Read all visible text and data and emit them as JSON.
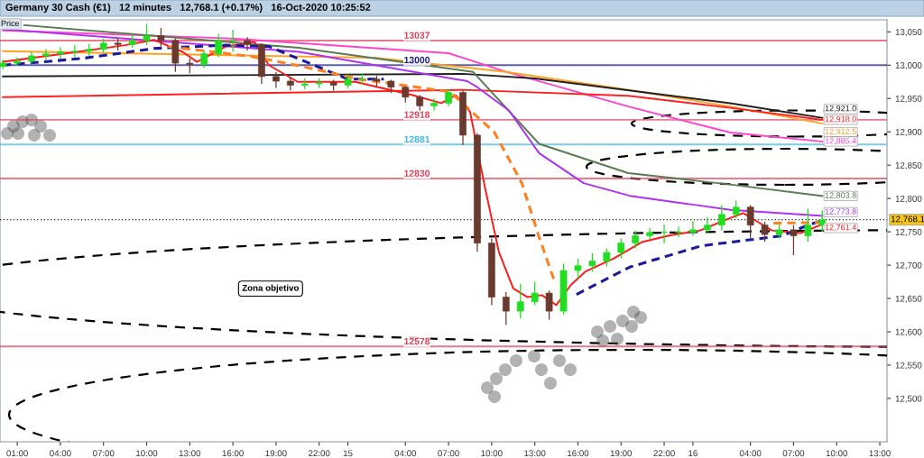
{
  "chart_data": {
    "type": "candlestick",
    "title": "Germany 30 Cash (€1)   12 minutes   12,768.1 (+0.17%)   16-Oct-2020 10:25:52",
    "x": [
      "2020-10-14T00:00",
      "2020-10-14T01:00",
      "2020-10-14T02:00",
      "2020-10-14T03:00",
      "2020-10-14T04:00",
      "2020-10-14T05:00",
      "2020-10-14T06:00",
      "2020-10-14T07:00",
      "2020-10-14T08:00",
      "2020-10-14T09:00",
      "2020-10-14T10:00",
      "2020-10-14T11:00",
      "2020-10-14T12:00",
      "2020-10-14T13:00",
      "2020-10-14T14:00",
      "2020-10-14T15:00",
      "2020-10-14T16:00",
      "2020-10-14T17:00",
      "2020-10-14T18:00",
      "2020-10-14T19:00",
      "2020-10-14T20:00",
      "2020-10-14T21:00",
      "2020-10-14T22:00",
      "2020-10-14T23:00",
      "2020-10-15T00:00",
      "2020-10-15T01:00",
      "2020-10-15T02:00",
      "2020-10-15T03:00",
      "2020-10-15T04:00",
      "2020-10-15T05:00",
      "2020-10-15T06:00",
      "2020-10-15T07:00",
      "2020-10-15T08:00",
      "2020-10-15T09:00",
      "2020-10-15T10:00",
      "2020-10-15T11:00",
      "2020-10-15T12:00",
      "2020-10-15T13:00",
      "2020-10-15T14:00",
      "2020-10-15T15:00",
      "2020-10-15T16:00",
      "2020-10-15T17:00",
      "2020-10-15T18:00",
      "2020-10-15T19:00",
      "2020-10-15T20:00",
      "2020-10-15T21:00",
      "2020-10-15T22:00",
      "2020-10-15T23:00",
      "2020-10-16T00:00",
      "2020-10-16T01:00",
      "2020-10-16T02:00",
      "2020-10-16T03:00",
      "2020-10-16T04:00",
      "2020-10-16T05:00",
      "2020-10-16T06:00",
      "2020-10-16T07:00",
      "2020-10-16T08:00",
      "2020-10-16T09:00"
    ],
    "ohlc": [
      [
        12998,
        13008,
        12994,
        13003
      ],
      [
        13003,
        13012,
        12999,
        13006
      ],
      [
        13006,
        13020,
        13002,
        13014
      ],
      [
        13014,
        13024,
        13008,
        13017
      ],
      [
        13017,
        13027,
        13010,
        13020
      ],
      [
        13020,
        13030,
        13012,
        13021
      ],
      [
        13021,
        13032,
        13014,
        13024
      ],
      [
        13024,
        13040,
        13018,
        13033
      ],
      [
        13033,
        13040,
        13022,
        13031
      ],
      [
        13031,
        13046,
        13026,
        13037
      ],
      [
        13037,
        13062,
        13030,
        13044
      ],
      [
        13044,
        13056,
        13028,
        13037
      ],
      [
        13037,
        13040,
        12990,
        13003
      ],
      [
        13003,
        13010,
        12988,
        13001
      ],
      [
        13001,
        13022,
        12996,
        13017
      ],
      [
        13017,
        13047,
        13012,
        13037
      ],
      [
        13037,
        13053,
        13020,
        13037
      ],
      [
        13037,
        13042,
        13022,
        13031
      ],
      [
        13031,
        13033,
        12972,
        12983
      ],
      [
        12983,
        12990,
        12966,
        12976
      ],
      [
        12976,
        12982,
        12962,
        12970
      ],
      [
        12970,
        12980,
        12964,
        12972
      ],
      [
        12972,
        12980,
        12966,
        12974
      ],
      [
        12974,
        12978,
        12962,
        12970
      ],
      [
        12970,
        12986,
        12965,
        12979
      ],
      [
        12979,
        12988,
        12972,
        12979
      ],
      [
        12979,
        12984,
        12968,
        12976
      ],
      [
        12976,
        12978,
        12958,
        12967
      ],
      [
        12967,
        12968,
        12944,
        12952
      ],
      [
        12952,
        12955,
        12930,
        12939
      ],
      [
        12939,
        12950,
        12932,
        12943
      ],
      [
        12943,
        12964,
        12938,
        12959
      ],
      [
        12959,
        12962,
        12880,
        12895
      ],
      [
        12895,
        12898,
        12720,
        12733
      ],
      [
        12733,
        12740,
        12640,
        12652
      ],
      [
        12652,
        12660,
        12610,
        12631
      ],
      [
        12631,
        12672,
        12620,
        12645
      ],
      [
        12645,
        12675,
        12640,
        12658
      ],
      [
        12658,
        12662,
        12618,
        12631
      ],
      [
        12631,
        12702,
        12626,
        12692
      ],
      [
        12692,
        12710,
        12680,
        12699
      ],
      [
        12699,
        12718,
        12690,
        12706
      ],
      [
        12706,
        12725,
        12698,
        12719
      ],
      [
        12719,
        12740,
        12710,
        12733
      ],
      [
        12733,
        12752,
        12725,
        12744
      ],
      [
        12744,
        12756,
        12738,
        12749
      ],
      [
        12749,
        12761,
        12733,
        12749
      ],
      [
        12749,
        12758,
        12742,
        12749
      ],
      [
        12749,
        12766,
        12744,
        12753
      ],
      [
        12753,
        12772,
        12748,
        12760
      ],
      [
        12760,
        12790,
        12752,
        12776
      ],
      [
        12776,
        12797,
        12770,
        12787
      ],
      [
        12787,
        12790,
        12740,
        12760
      ],
      [
        12760,
        12765,
        12735,
        12746
      ],
      [
        12746,
        12762,
        12740,
        12753
      ],
      [
        12753,
        12760,
        12715,
        12744
      ],
      [
        12744,
        12785,
        12735,
        12760
      ],
      [
        12760,
        12782,
        12750,
        12768.1
      ]
    ],
    "colors": [
      "#22dd22",
      "#22dd22",
      "#22dd22",
      "#22dd22",
      "#22dd22",
      "#22dd22",
      "#22dd22",
      "#22dd22",
      "#6b3a2e",
      "#22dd22",
      "#22dd22",
      "#6b3a2e",
      "#6b3a2e",
      "#6b3a2e",
      "#22dd22",
      "#22dd22",
      "#22dd22",
      "#6b3a2e",
      "#6b3a2e",
      "#6b3a2e",
      "#6b3a2e",
      "#22dd22",
      "#22dd22",
      "#6b3a2e",
      "#22dd22",
      "#22dd22",
      "#6b3a2e",
      "#6b3a2e",
      "#6b3a2e",
      "#6b3a2e",
      "#22dd22",
      "#22dd22",
      "#6b3a2e",
      "#6b3a2e",
      "#6b3a2e",
      "#6b3a2e",
      "#22dd22",
      "#22dd22",
      "#6b3a2e",
      "#22dd22",
      "#22dd22",
      "#22dd22",
      "#22dd22",
      "#22dd22",
      "#22dd22",
      "#22dd22",
      "#22dd22",
      "#22dd22",
      "#22dd22",
      "#22dd22",
      "#22dd22",
      "#22dd22",
      "#6b3a2e",
      "#6b3a2e",
      "#22dd22",
      "#6b3a2e",
      "#22dd22",
      "#22dd22"
    ],
    "series": [
      {
        "type": "line",
        "color": "#ff44cc",
        "x": [
          "2020-10-14T00:00",
          "2020-10-14T16:00",
          "2020-10-15T07:00",
          "2020-10-15T11:00",
          "2020-10-15T19:30",
          "2020-10-16T02:36",
          "2020-10-16T09:00"
        ],
        "values": [
          13052,
          13040,
          13018,
          12990,
          12938,
          12899,
          12885.4
        ],
        "value_labels": [
          null,
          null,
          null,
          null,
          null,
          null,
          "12,885.4"
        ]
      },
      {
        "type": "line",
        "color": "#ffa020",
        "x": [
          "2020-10-14T00:00",
          "2020-10-15T02:00",
          "2020-10-15T11:00",
          "2020-10-15T19:30",
          "2020-10-16T02:36",
          "2020-10-16T09:00"
        ],
        "values": [
          13021,
          13011,
          12990,
          12963,
          12938,
          12912.5
        ],
        "value_labels": [
          null,
          null,
          null,
          null,
          null,
          "12,912.5"
        ]
      },
      {
        "type": "line",
        "color": "#202020",
        "x": [
          "2020-10-14T00:00",
          "2020-10-15T08:00",
          "2020-10-15T13:00",
          "2020-10-16T02:36",
          "2020-10-16T09:00"
        ],
        "values": [
          12983,
          12987,
          12980,
          12943,
          12921.0
        ],
        "value_labels": [
          null,
          null,
          null,
          null,
          "12,921.0"
        ]
      },
      {
        "type": "line",
        "color": "#ff2020",
        "x": [
          "2020-10-14T00:00",
          "2020-10-15T08:00",
          "2020-10-15T19:30",
          "2020-10-16T02:36",
          "2020-10-16T09:00"
        ],
        "values": [
          12952,
          12963,
          12954,
          12936,
          12918.0
        ],
        "value_labels": [
          null,
          null,
          null,
          null,
          "12,918.0"
        ]
      },
      {
        "type": "line",
        "color": "#5a7a50",
        "x": [
          "2020-10-14T01:30",
          "2020-10-14T20:36",
          "2020-10-15T08:42",
          "2020-10-15T13:18",
          "2020-10-15T19:30",
          "2020-10-16T02:36",
          "2020-10-16T09:00"
        ],
        "values": [
          13060,
          13026,
          12990,
          12882,
          12838,
          12821,
          12803.8
        ],
        "value_labels": [
          null,
          null,
          null,
          null,
          null,
          null,
          "12,803.8"
        ]
      },
      {
        "type": "line",
        "color": "#b030f0",
        "x": [
          "2020-10-14T00:00",
          "2020-10-14T20:36",
          "2020-10-15T08:18",
          "2020-10-15T09:00",
          "2020-10-15T11:12",
          "2020-10-15T13:18",
          "2020-10-15T16:24",
          "2020-10-15T19:36",
          "2020-10-16T02:36",
          "2020-10-16T09:00"
        ],
        "values": [
          13054,
          13020,
          12976,
          12967,
          12932,
          12868,
          12823,
          12804,
          12783,
          12773.8
        ],
        "value_labels": [
          null,
          null,
          null,
          null,
          null,
          null,
          null,
          null,
          null,
          "12,773.8"
        ]
      },
      {
        "type": "line",
        "color": "#ff1a1a",
        "x": [
          "2020-10-14T00:00",
          "2020-10-14T04:30",
          "2020-10-14T08:30",
          "2020-10-14T10:30",
          "2020-10-14T12:30",
          "2020-10-14T13:30",
          "2020-10-14T15:30",
          "2020-10-14T17:30",
          "2020-10-14T18:30",
          "2020-10-14T20:30",
          "2020-10-15T00:30",
          "2020-10-15T04:30",
          "2020-10-15T06:30",
          "2020-10-15T07:30",
          "2020-10-15T08:30",
          "2020-10-15T09:30",
          "2020-10-15T10:30",
          "2020-10-15T11:30",
          "2020-10-15T12:30",
          "2020-10-15T13:30",
          "2020-10-15T14:30",
          "2020-10-15T15:30",
          "2020-10-15T16:30",
          "2020-10-15T18:30",
          "2020-10-15T20:30",
          "2020-10-15T22:30",
          "2020-10-16T00:30",
          "2020-10-16T02:30",
          "2020-10-16T03:30",
          "2020-10-16T04:30",
          "2020-10-16T05:30",
          "2020-10-16T07:30",
          "2020-10-16T09:00"
        ],
        "values": [
          13005,
          13018,
          13030,
          13038,
          13020,
          13005,
          13028,
          13035,
          13000,
          12975,
          12975,
          12955,
          12943,
          12955,
          12930,
          12820,
          12720,
          12665,
          12652,
          12655,
          12640,
          12670,
          12690,
          12710,
          12735,
          12745,
          12752,
          12770,
          12778,
          12765,
          12752,
          12748,
          12761.4
        ],
        "value_labels": [
          null,
          null,
          null,
          null,
          null,
          null,
          null,
          null,
          null,
          null,
          null,
          null,
          null,
          null,
          null,
          null,
          null,
          null,
          null,
          null,
          null,
          null,
          null,
          null,
          null,
          null,
          null,
          null,
          null,
          null,
          null,
          null,
          "12,761.4"
        ]
      },
      {
        "type": "line",
        "color": "#1a1a9a",
        "line_style": "dashed",
        "x": [
          "2020-10-14T00:00",
          "2020-10-14T05:30",
          "2020-10-14T10:30",
          "2020-10-14T15:30",
          "2020-10-14T18:30",
          "2020-10-15T00:00",
          "2020-10-15T02:30",
          "2020-10-15T09:00",
          "2020-10-15T15:54",
          "2020-10-15T19:36",
          "2020-10-16T00:36",
          "2020-10-16T06:12",
          "2020-10-16T08:00",
          "2020-10-16T09:00"
        ],
        "values": [
          13000,
          13010,
          13025,
          13030,
          13028,
          12979,
          12979,
          null,
          12656,
          12697,
          12729,
          12744,
          12760,
          12767
        ]
      },
      {
        "type": "line",
        "color": "#ff8020",
        "line_style": "dashed",
        "x": [
          "2020-10-14T11:30",
          "2020-10-14T17:18",
          "2020-10-14T20:24",
          "2020-10-15T00:48",
          "2020-10-15T07:06",
          "2020-10-15T10:12",
          "2020-10-15T12:06",
          "2020-10-15T13:18",
          "2020-10-15T14:24",
          "2020-10-15T21:00",
          "2020-10-16T05:36",
          "2020-10-16T09:00"
        ],
        "values": [
          13028,
          13013,
          13000,
          12979,
          12960,
          12899,
          12823,
          12742,
          12674,
          null,
          12763,
          12764
        ]
      }
    ],
    "ref_lines": [
      {
        "axis": "y",
        "value": 13037,
        "label": "13037",
        "color": "#e0405a"
      },
      {
        "axis": "y",
        "value": 13000,
        "label": "13000",
        "color": "#1a1a8a"
      },
      {
        "axis": "y",
        "value": 12918,
        "label": "12918",
        "color": "#e0405a"
      },
      {
        "axis": "y",
        "value": 12881,
        "label": "12881",
        "color": "#40b8e8"
      },
      {
        "axis": "y",
        "value": 12830,
        "label": "12830",
        "color": "#e0405a"
      },
      {
        "axis": "y",
        "value": 12578,
        "label": "12578",
        "color": "#e0405a"
      },
      {
        "axis": "y",
        "value": 12768.1,
        "label": "12,768.1",
        "color": "#202020",
        "line_style": "dotted"
      }
    ],
    "annotations": [
      "Price",
      "Zona objetivo"
    ],
    "xlim": [
      "2020-10-13T23:48",
      "2020-10-16T13:30"
    ],
    "xticks": [
      {
        "value": "2020-10-14T01:00",
        "label": "01:00"
      },
      {
        "value": "2020-10-14T04:00",
        "label": "04:00"
      },
      {
        "value": "2020-10-14T07:00",
        "label": "07:00"
      },
      {
        "value": "2020-10-14T10:00",
        "label": "10:00"
      },
      {
        "value": "2020-10-14T13:00",
        "label": "13:00"
      },
      {
        "value": "2020-10-14T16:00",
        "label": "16:00"
      },
      {
        "value": "2020-10-14T19:00",
        "label": "19:00"
      },
      {
        "value": "2020-10-14T22:00",
        "label": "22:00"
      },
      {
        "value": "2020-10-15T00:00",
        "label": "15"
      },
      {
        "value": "2020-10-15T04:00",
        "label": "04:00"
      },
      {
        "value": "2020-10-15T07:00",
        "label": "07:00"
      },
      {
        "value": "2020-10-15T10:00",
        "label": "10:00"
      },
      {
        "value": "2020-10-15T13:00",
        "label": "13:00"
      },
      {
        "value": "2020-10-15T16:00",
        "label": "16:00"
      },
      {
        "value": "2020-10-15T19:00",
        "label": "19:00"
      },
      {
        "value": "2020-10-15T22:00",
        "label": "22:00"
      },
      {
        "value": "2020-10-16T00:00",
        "label": "16"
      },
      {
        "value": "2020-10-16T04:00",
        "label": "04:00"
      },
      {
        "value": "2020-10-16T07:00",
        "label": "07:00"
      },
      {
        "value": "2020-10-16T10:00",
        "label": "10:00"
      },
      {
        "value": "2020-10-16T13:00",
        "label": "13:00"
      }
    ],
    "ylim": [
      12435,
      13068
    ],
    "yticks": [
      {
        "value": 12500,
        "label": "12,500"
      },
      {
        "value": 12550,
        "label": "12,550"
      },
      {
        "value": 12600,
        "label": "12,600"
      },
      {
        "value": 12650,
        "label": "12,650"
      },
      {
        "value": 12700,
        "label": "12,700"
      },
      {
        "value": 12750,
        "label": "12,750"
      },
      {
        "value": 12800,
        "label": "12,800"
      },
      {
        "value": 12850,
        "label": "12,850"
      },
      {
        "value": 12900,
        "label": "12,900"
      },
      {
        "value": 12950,
        "label": "12,950"
      },
      {
        "value": 13000,
        "label": "13,000"
      },
      {
        "value": 13050,
        "label": "13,050"
      }
    ],
    "grid": false,
    "legend": false
  }
}
